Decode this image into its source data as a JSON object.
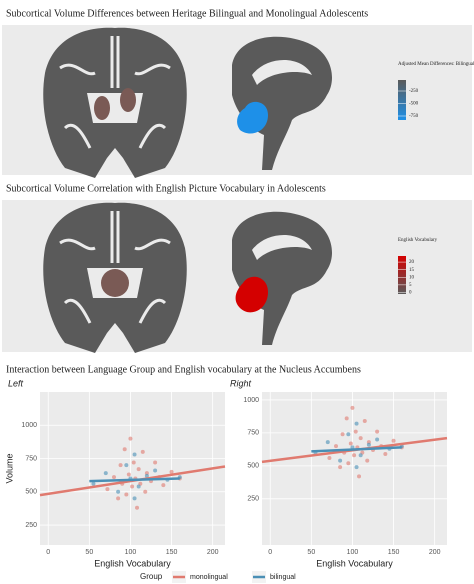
{
  "panels": [
    {
      "title": "Subcortical Volume Differences between Heritage Bilingual and Monolingual Adolescents",
      "colorbar": {
        "title": "Adjusted Mean Differences: Bilinguals - Monolinguals",
        "lim": [
          -830,
          -30
        ],
        "ticks": [
          -250,
          -500,
          -750
        ],
        "colors": [
          "#5a5a5a",
          "#1e90e8"
        ]
      }
    },
    {
      "title": "Subcortical Volume Correlation with English Picture Vocabulary in Adolescents",
      "colorbar": {
        "title": "English Vocabulary",
        "lim": [
          -1,
          24
        ],
        "ticks": [
          20,
          15,
          10,
          5,
          0
        ],
        "colors": [
          "#d40000",
          "#5a5a5a"
        ]
      }
    },
    {
      "title": "Interaction between Language Group and English vocabulary at the Nucleus Accumbens"
    }
  ],
  "legend_title": "Group",
  "chart_data": [
    {
      "type": "scatter",
      "subtitle": "Left",
      "x_label": "English Vocabulary",
      "y_label": "Volume",
      "xlim": [
        -10,
        215
      ],
      "ylim": [
        100,
        1250
      ],
      "xticks": [
        0,
        50,
        100,
        150,
        200
      ],
      "yticks": [
        250,
        500,
        750,
        1000
      ],
      "grid": true,
      "series": [
        {
          "name": "monolingual",
          "color": "#e07a6f",
          "x": [
            72,
            80,
            85,
            88,
            90,
            93,
            95,
            98,
            100,
            102,
            104,
            106,
            108,
            110,
            112,
            115,
            118,
            120,
            125,
            130,
            135,
            140,
            150,
            160
          ],
          "values": [
            520,
            610,
            450,
            700,
            560,
            820,
            480,
            630,
            900,
            540,
            720,
            600,
            380,
            670,
            560,
            800,
            500,
            640,
            580,
            720,
            610,
            550,
            650,
            600
          ],
          "fit_x": [
            -10,
            215
          ],
          "fit_values": [
            475,
            690
          ]
        },
        {
          "name": "bilingual",
          "color": "#4a8fb5",
          "x": [
            55,
            70,
            85,
            95,
            100,
            105,
            110,
            120,
            130,
            145,
            160,
            105
          ],
          "values": [
            560,
            640,
            500,
            700,
            600,
            780,
            540,
            620,
            660,
            590,
            610,
            450
          ],
          "fit_x": [
            50,
            160
          ],
          "fit_values": [
            580,
            600
          ]
        }
      ]
    },
    {
      "type": "scatter",
      "subtitle": "Right",
      "x_label": "English Vocabulary",
      "xlim": [
        -10,
        215
      ],
      "ylim": [
        -100,
        1060
      ],
      "xticks": [
        0,
        50,
        100,
        150,
        200
      ],
      "yticks": [
        250,
        500,
        750,
        1000
      ],
      "grid": true,
      "series": [
        {
          "name": "monolingual",
          "color": "#e07a6f",
          "x": [
            72,
            80,
            85,
            88,
            90,
            93,
            95,
            98,
            100,
            102,
            104,
            106,
            108,
            110,
            112,
            115,
            118,
            120,
            125,
            130,
            135,
            140,
            150,
            160
          ],
          "values": [
            560,
            650,
            490,
            740,
            600,
            860,
            520,
            670,
            940,
            580,
            760,
            640,
            420,
            710,
            600,
            840,
            540,
            680,
            620,
            760,
            650,
            590,
            690,
            640
          ],
          "fit_x": [
            -10,
            215
          ],
          "fit_values": [
            530,
            710
          ]
        },
        {
          "name": "bilingual",
          "color": "#4a8fb5",
          "x": [
            55,
            70,
            85,
            95,
            100,
            105,
            110,
            120,
            130,
            145,
            160,
            105
          ],
          "values": [
            600,
            680,
            540,
            740,
            640,
            820,
            580,
            660,
            700,
            630,
            650,
            490
          ],
          "fit_x": [
            50,
            160
          ],
          "fit_values": [
            610,
            640
          ]
        }
      ]
    }
  ]
}
